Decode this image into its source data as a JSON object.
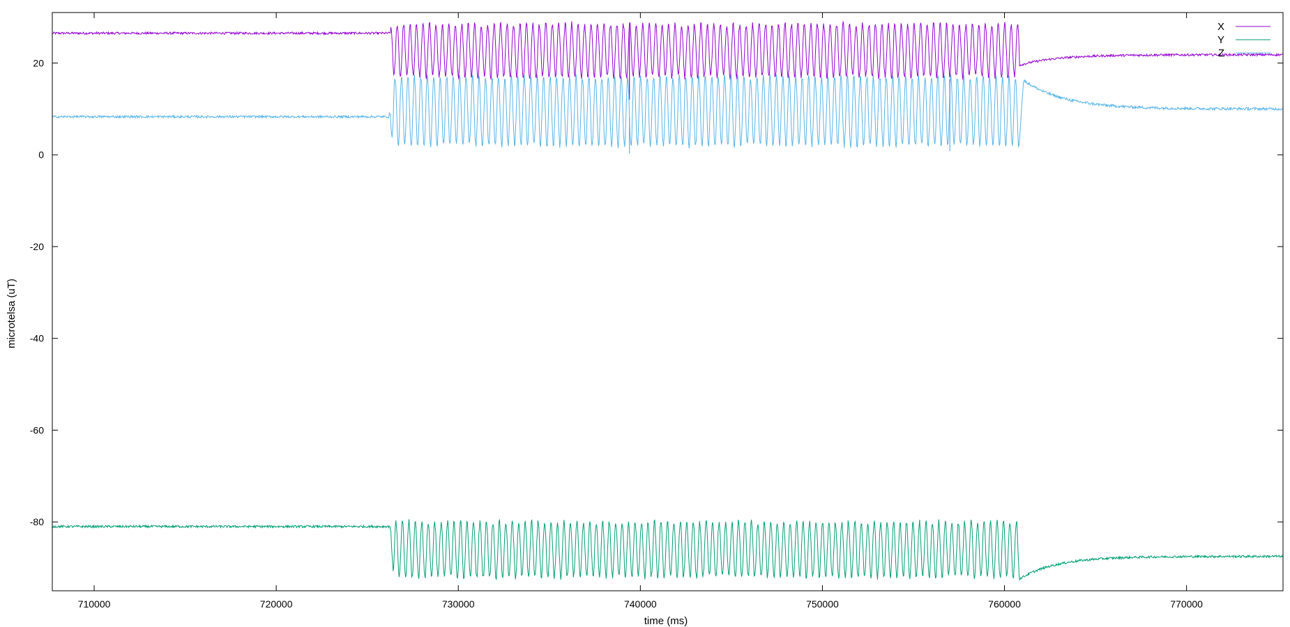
{
  "chart_data": {
    "type": "line",
    "xlabel": "time (ms)",
    "ylabel": "microtelsa (uT)",
    "xlim": [
      707700,
      775300
    ],
    "ylim": [
      -95,
      31
    ],
    "xticks": [
      710000,
      720000,
      730000,
      740000,
      750000,
      760000,
      770000
    ],
    "xtick_labels": [
      "710000",
      "720000",
      "730000",
      "740000",
      "750000",
      "760000",
      "770000"
    ],
    "yticks": [
      20,
      0,
      -20,
      -40,
      -60,
      -80
    ],
    "ytick_labels": [
      "20",
      "0",
      "-20",
      "-40",
      "-60",
      "-80"
    ],
    "grid": false,
    "legend_position": "top-right",
    "oscillation": {
      "start": 726200,
      "end": 760800
    },
    "series": [
      {
        "name": "X",
        "color": "#9400d3",
        "baseline_before": 26.5,
        "osc_min": 17.0,
        "osc_max": 28.5,
        "after_dip": 19.5,
        "after_settle": 21.8,
        "spikes": [
          {
            "x": 739400,
            "y": 12.0
          },
          {
            "x": 757000,
            "y": 9.0
          }
        ]
      },
      {
        "name": "Y",
        "color": "#009e73",
        "baseline_before": -81.0,
        "osc_min": -92.0,
        "osc_max": -80.0,
        "after_dip": -92.5,
        "after_settle": -87.5,
        "spikes": []
      },
      {
        "name": "Z",
        "color": "#56b4e9",
        "baseline_before": 8.3,
        "osc_min": 2.0,
        "osc_max": 17.0,
        "after_peak": 17.0,
        "after_settle": 10.0,
        "spikes": [
          {
            "x": 739400,
            "y": 0.3
          },
          {
            "x": 757000,
            "y": 0.8
          }
        ]
      }
    ]
  }
}
